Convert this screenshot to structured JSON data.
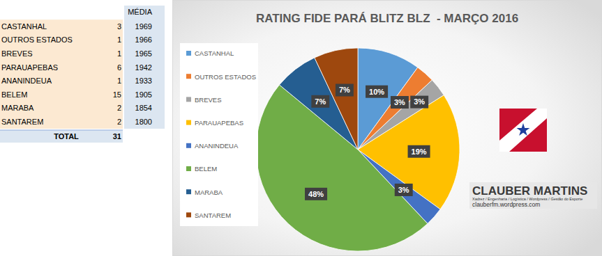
{
  "chart_data": {
    "type": "pie",
    "title": "RATING FIDE PARÁ BLITZ BLZ  - MARÇO 2016",
    "categories": [
      "CASTANHAL",
      "OUTROS ESTADOS",
      "BREVES",
      "PARAUAPEBAS",
      "ANANINDEUA",
      "BELEM",
      "MARABA",
      "SANTAREM"
    ],
    "values": [
      10,
      3,
      3,
      19,
      3,
      48,
      7,
      7
    ],
    "value_labels": [
      "10%",
      "3%",
      "3%",
      "19%",
      "3%",
      "48%",
      "7%",
      "7%"
    ],
    "colors": [
      "#5b9bd5",
      "#ed7d31",
      "#a5a5a5",
      "#ffc000",
      "#4472c4",
      "#70ad47",
      "#255e91",
      "#9e480e"
    ],
    "data_labels": true,
    "legend": "left"
  },
  "table": {
    "header": "MÉDIA",
    "rows": [
      {
        "name": "CASTANHAL",
        "count": 3,
        "average": 1969
      },
      {
        "name": "OUTROS ESTADOS",
        "count": 1,
        "average": 1966
      },
      {
        "name": "BREVES",
        "count": 1,
        "average": 1965
      },
      {
        "name": "PARAUAPEBAS",
        "count": 6,
        "average": 1942
      },
      {
        "name": "ANANINDEUA",
        "count": 1,
        "average": 1933
      },
      {
        "name": "BELEM",
        "count": 15,
        "average": 1905
      },
      {
        "name": "MARABA",
        "count": 2,
        "average": 1854
      },
      {
        "name": "SANTAREM",
        "count": 2,
        "average": 1800
      }
    ],
    "total": {
      "label": "TOTAL",
      "count": 31
    }
  },
  "logo": {
    "title": "CLAUBER MARTINS",
    "subtitle": "Xadrez / Engenharia / Logística / Wordpress / Gestão do Esporte",
    "url": "clauberfm.wordpress.com"
  }
}
